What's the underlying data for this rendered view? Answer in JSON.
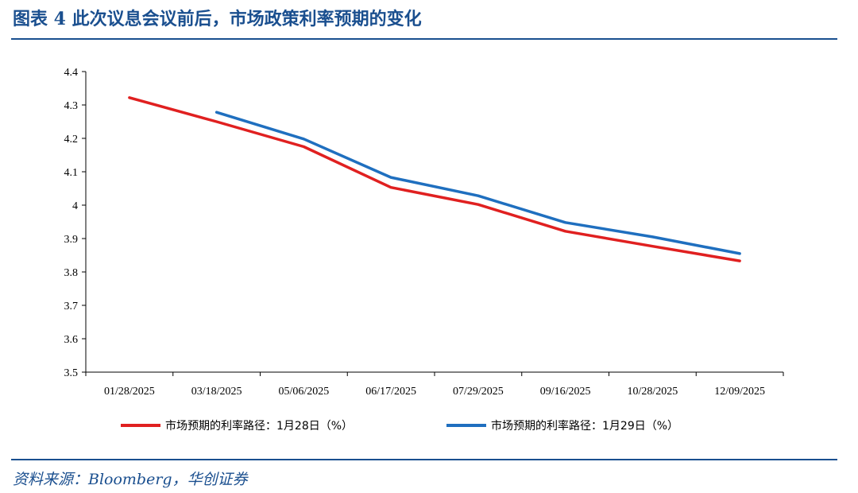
{
  "header": {
    "title": "图表 4   此次议息会议前后，市场政策利率预期的变化"
  },
  "footer": {
    "source": "资料来源：Bloomberg，华创证券"
  },
  "colors": {
    "title_blue": "#1a4f8f",
    "series_red": "#e02020",
    "series_blue": "#1f6fbf"
  },
  "chart_data": {
    "type": "line",
    "categories": [
      "01/28/2025",
      "03/18/2025",
      "05/06/2025",
      "06/17/2025",
      "07/29/2025",
      "09/16/2025",
      "10/28/2025",
      "12/09/2025"
    ],
    "yticks": [
      "4.4",
      "4.3",
      "4.2",
      "4.1",
      "4",
      "3.9",
      "3.8",
      "3.7",
      "3.6",
      "3.5"
    ],
    "ylim": [
      3.5,
      4.4
    ],
    "grid": false,
    "legend_position": "bottom",
    "series": [
      {
        "name": "市场预期的利率路径：1月28日（%）",
        "color": "#e02020",
        "values": [
          4.322,
          4.25,
          4.175,
          4.053,
          4.002,
          3.922,
          3.877,
          3.833
        ]
      },
      {
        "name": "市场预期的利率路径：1月29日（%）",
        "color": "#1f6fbf",
        "values": [
          null,
          4.278,
          4.198,
          4.083,
          4.028,
          3.948,
          3.905,
          3.855
        ]
      }
    ]
  }
}
